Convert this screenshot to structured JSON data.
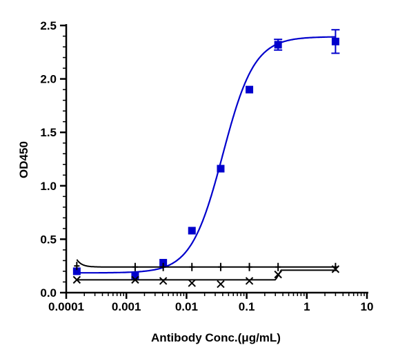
{
  "chart_data": {
    "type": "scatter",
    "xlabel": "Antibody Conc.(μg/mL)",
    "ylabel": "OD450",
    "x_scale": "log",
    "xlim": [
      0.0001,
      10
    ],
    "ylim": [
      0,
      2.5
    ],
    "x_ticks": [
      {
        "value": 0.0001,
        "label": "0.0001"
      },
      {
        "value": 0.001,
        "label": "0.001"
      },
      {
        "value": 0.01,
        "label": "0.01"
      },
      {
        "value": 0.1,
        "label": "0.1"
      },
      {
        "value": 1,
        "label": "1"
      },
      {
        "value": 10,
        "label": "10"
      }
    ],
    "y_ticks": [
      {
        "value": 0,
        "label": "0.0"
      },
      {
        "value": 0.5,
        "label": "0.5"
      },
      {
        "value": 1.0,
        "label": "1.0"
      },
      {
        "value": 1.5,
        "label": "1.5"
      },
      {
        "value": 2.0,
        "label": "2.0"
      },
      {
        "value": 2.5,
        "label": "2.5"
      }
    ],
    "grid": false,
    "legend": "none",
    "series": [
      {
        "marker": "square",
        "color": "#0000cc",
        "x": [
          0.00015,
          0.0014,
          0.0041,
          0.0123,
          0.037,
          0.111,
          0.333,
          3.0
        ],
        "y": [
          0.2,
          0.16,
          0.28,
          0.58,
          1.16,
          1.9,
          2.32,
          2.35
        ],
        "error": [
          0,
          0,
          0,
          0,
          0,
          0,
          0.05,
          0.11
        ],
        "fit": {
          "model": "4PL",
          "bottom": 0.185,
          "top": 2.395,
          "ec50": 0.04,
          "hill": 1.65
        }
      },
      {
        "marker": "plus",
        "color": "#000000",
        "x": [
          0.00015,
          0.0014,
          0.0041,
          0.0123,
          0.037,
          0.111,
          0.333,
          3.0
        ],
        "y": [
          0.25,
          0.24,
          0.24,
          0.24,
          0.24,
          0.24,
          0.24,
          0.24
        ],
        "fit": {
          "model": "baseline",
          "level": 0.24
        }
      },
      {
        "marker": "x",
        "color": "#000000",
        "x": [
          0.00015,
          0.0014,
          0.0041,
          0.0123,
          0.037,
          0.111,
          0.333,
          3.0
        ],
        "y": [
          0.12,
          0.12,
          0.11,
          0.09,
          0.08,
          0.11,
          0.17,
          0.22
        ],
        "fit": {
          "model": "step",
          "low": 0.12,
          "high": 0.21,
          "threshold": 0.3
        }
      }
    ]
  }
}
